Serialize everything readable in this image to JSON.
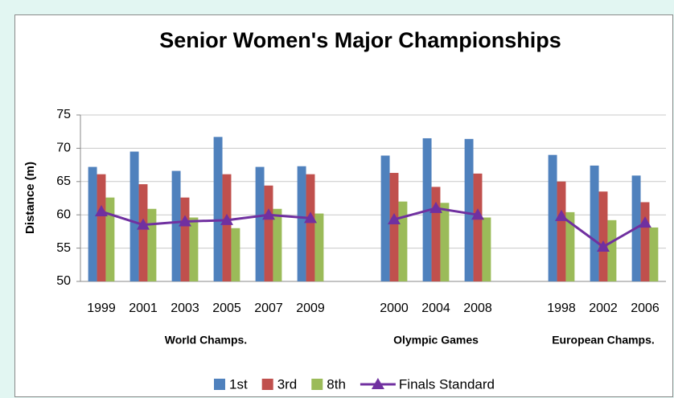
{
  "chart_data": {
    "type": "bar-line",
    "title": "Senior Women's Major Championships",
    "y_label": "Distance (m)",
    "categories": [
      "1999",
      "2001",
      "2003",
      "2005",
      "2007",
      "2009",
      null,
      "2000",
      "2004",
      "2008",
      null,
      "1998",
      "2002",
      "2006"
    ],
    "groups": [
      "World Champs.",
      "Olympic Games",
      "European Champs."
    ],
    "series": [
      {
        "name": "1st",
        "color": "#4f81bd",
        "kind": "bar",
        "values": [
          67.2,
          69.5,
          66.6,
          71.7,
          67.2,
          67.3,
          null,
          68.9,
          71.5,
          71.4,
          null,
          69.0,
          67.4,
          65.9
        ]
      },
      {
        "name": "3rd",
        "color": "#c0504d",
        "kind": "bar",
        "values": [
          66.1,
          64.6,
          62.6,
          66.1,
          64.4,
          66.1,
          null,
          66.3,
          64.2,
          66.2,
          null,
          65.0,
          63.5,
          61.9
        ]
      },
      {
        "name": "8th",
        "color": "#9bbb59",
        "kind": "bar",
        "values": [
          62.6,
          60.9,
          59.6,
          58.0,
          60.9,
          60.2,
          null,
          62.0,
          61.8,
          59.6,
          null,
          60.4,
          59.2,
          58.1
        ]
      },
      {
        "name": "Finals Standard",
        "color": "#7030a0",
        "kind": "line",
        "values": [
          60.5,
          58.5,
          59.0,
          59.2,
          60.0,
          59.5,
          null,
          59.3,
          61.0,
          60.0,
          null,
          59.8,
          55.2,
          58.8
        ]
      }
    ],
    "ylim": [
      50,
      75
    ],
    "yticks": [
      50,
      55,
      60,
      65,
      70,
      75
    ],
    "grid": true,
    "legend": "bottom"
  }
}
